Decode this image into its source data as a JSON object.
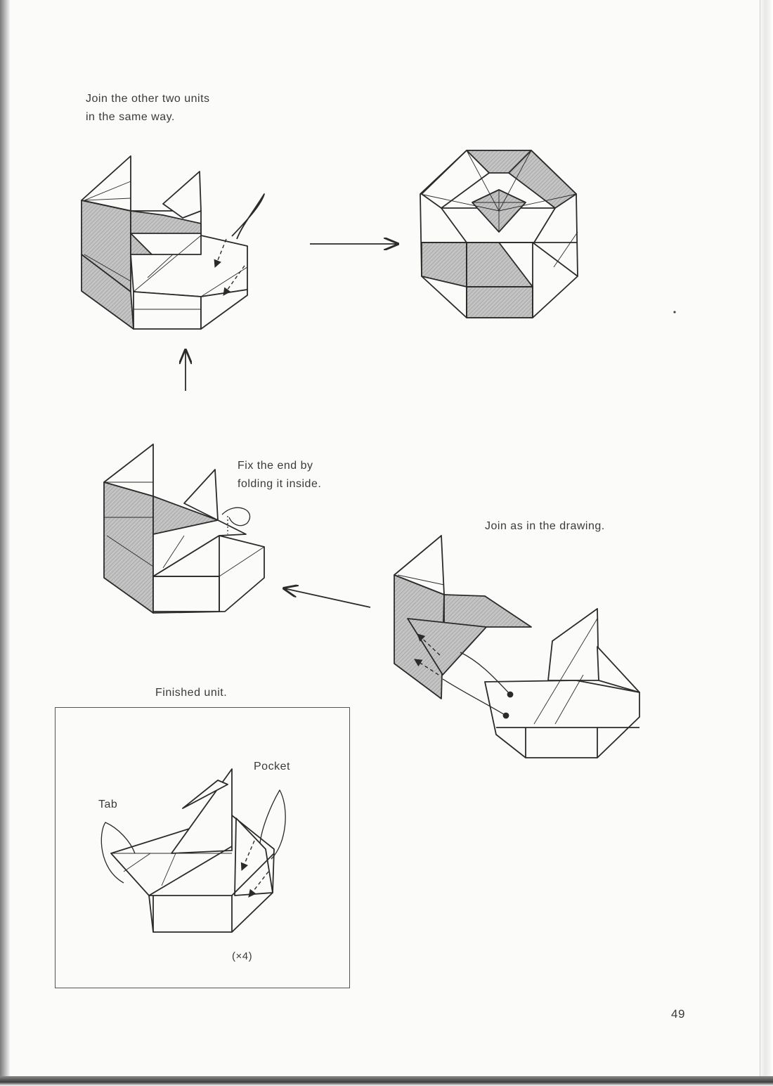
{
  "page": {
    "page_number": "49"
  },
  "captions": {
    "step_join_other": [
      "Join the other two units",
      "in the same way."
    ],
    "step_fix_end": [
      "Fix the end by",
      "folding it inside."
    ],
    "step_join_drawing": "Join as in the drawing.",
    "finished_unit": "Finished unit."
  },
  "finished_unit_box": {
    "tab_label": "Tab",
    "pocket_label": "Pocket",
    "multiplier": "(×4)"
  },
  "colors": {
    "line": "#2b2b2b",
    "shade": "#b9b9b9",
    "paper": "#fbfbfa"
  }
}
